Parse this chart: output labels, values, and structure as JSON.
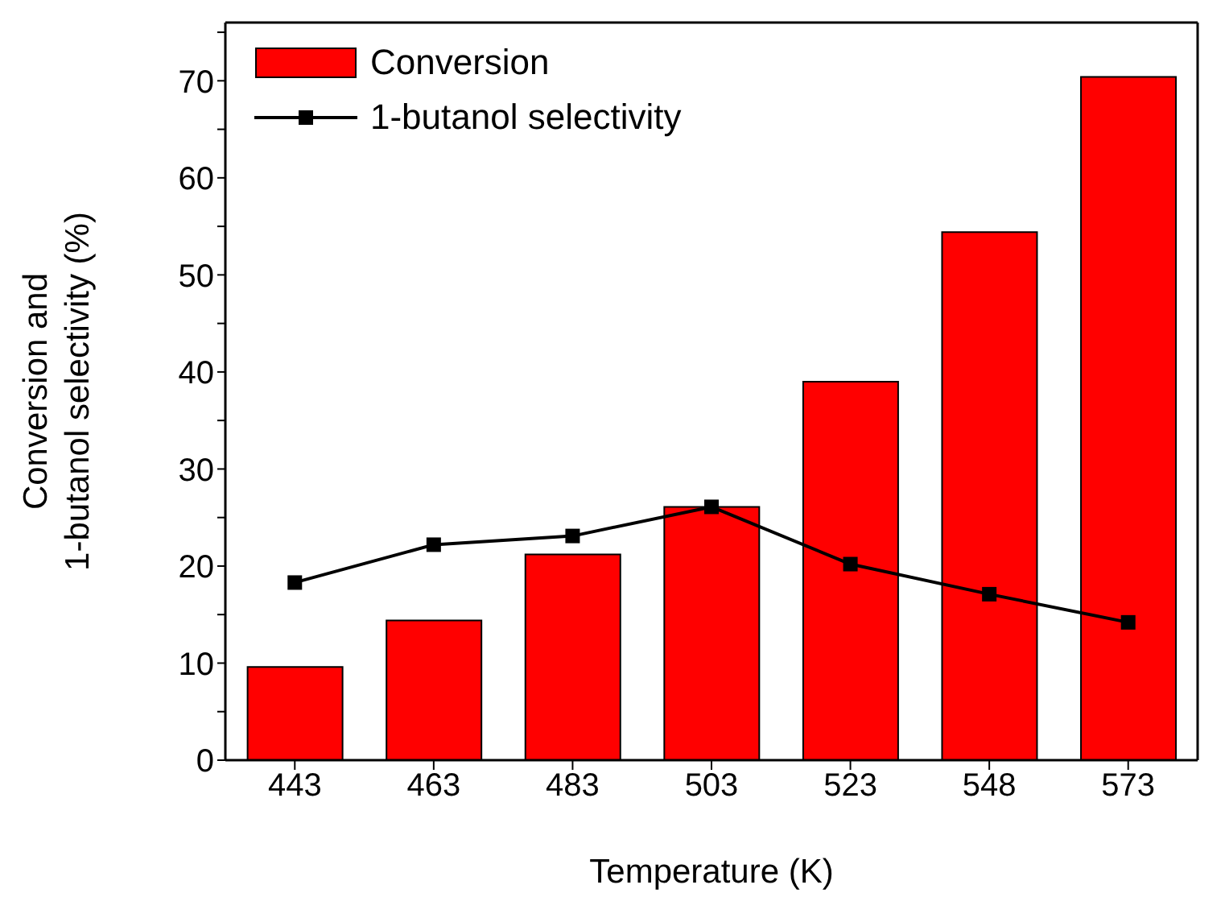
{
  "chart_data": {
    "type": "bar",
    "xlabel": "Temperature (K)",
    "ylabel": "Conversion and\n1-butanol selectivity (%)",
    "categories": [
      "443",
      "463",
      "483",
      "503",
      "523",
      "548",
      "573"
    ],
    "series": [
      {
        "name": "Conversion",
        "color": "#ff0000",
        "values": [
          9.6,
          14.4,
          21.2,
          26.1,
          39.0,
          54.4,
          70.4
        ]
      },
      {
        "name": "1-butanol selectivity",
        "type": "line",
        "color": "#000000",
        "marker": "square",
        "values": [
          18.3,
          22.2,
          23.1,
          26.1,
          20.2,
          17.1,
          14.2
        ]
      }
    ],
    "ylim": [
      0,
      76
    ],
    "yticks": [
      0,
      {
        "value": 5,
        "label": null
      },
      10,
      {
        "value": 15,
        "label": null
      },
      20,
      {
        "value": 25,
        "label": null
      },
      30,
      {
        "value": 35,
        "label": null
      },
      40,
      {
        "value": 45,
        "label": null
      },
      50,
      {
        "value": 55,
        "label": null
      },
      60,
      {
        "value": 65,
        "label": null
      },
      70,
      {
        "value": 75,
        "label": null
      }
    ],
    "grid": false,
    "legend": "top left"
  }
}
